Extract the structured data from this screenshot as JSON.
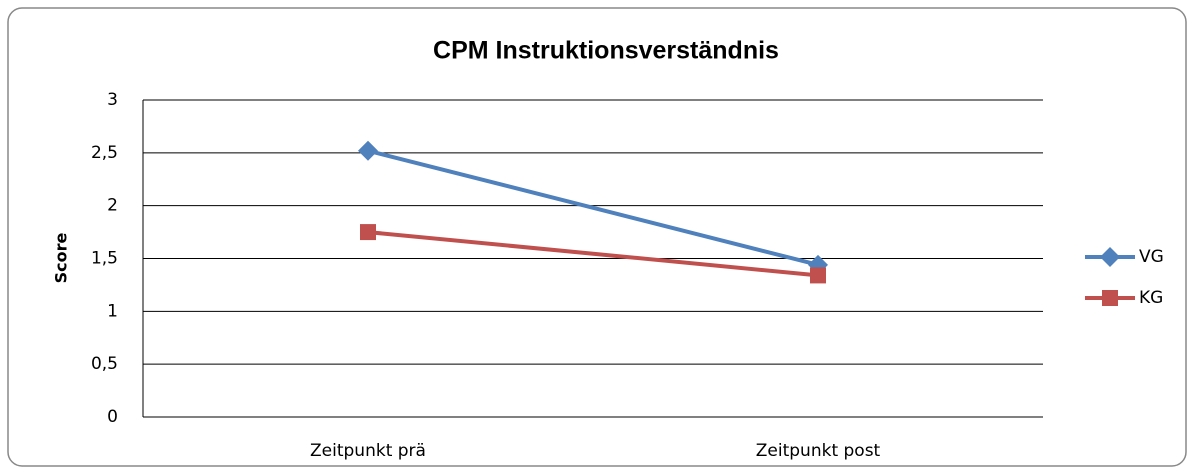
{
  "chart_data": {
    "type": "line",
    "title": "CPM Instruktionsverständnis",
    "y_label": "Score",
    "categories": [
      "Zeitpunkt prä",
      "Zeitpunkt post"
    ],
    "series": [
      {
        "name": "VG",
        "color": "#4f81bd",
        "marker": "diamond",
        "values": [
          2.52,
          1.44
        ]
      },
      {
        "name": "KG",
        "color": "#c0504d",
        "marker": "square",
        "values": [
          1.75,
          1.34
        ]
      }
    ],
    "ylim": [
      0,
      3
    ],
    "yticks": [
      0,
      {
        "value": 0.5,
        "label": "0,5"
      },
      1,
      {
        "value": 1.5,
        "label": "1,5"
      },
      2,
      {
        "value": 2.5,
        "label": "2,5"
      },
      3
    ],
    "grid": true,
    "legend": "right"
  }
}
